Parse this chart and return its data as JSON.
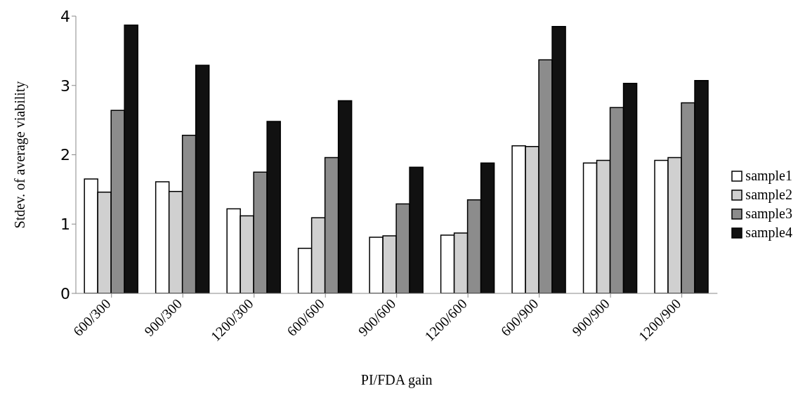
{
  "chart_data": {
    "type": "bar",
    "xlabel": "PI/FDA gain",
    "ylabel": "Stdev. of average  viability",
    "categories": [
      "600/300",
      "900/300",
      "1200/300",
      "600/600",
      "900/600",
      "1200/600",
      "600/900",
      "900/900",
      "1200/900"
    ],
    "series": [
      {
        "name": "sample1",
        "color": "#ffffff",
        "values": [
          1.65,
          1.61,
          1.22,
          0.65,
          0.81,
          0.84,
          2.13,
          1.88,
          1.92
        ]
      },
      {
        "name": "sample2",
        "color": "#d0d0d0",
        "values": [
          1.46,
          1.47,
          1.12,
          1.09,
          0.83,
          0.87,
          2.12,
          1.92,
          1.96
        ]
      },
      {
        "name": "sample3",
        "color": "#8c8c8c",
        "values": [
          2.64,
          2.28,
          1.75,
          1.96,
          1.29,
          1.35,
          3.37,
          2.68,
          2.75
        ]
      },
      {
        "name": "sample4",
        "color": "#111111",
        "values": [
          3.87,
          3.29,
          2.48,
          2.78,
          1.82,
          1.88,
          3.85,
          3.03,
          3.07
        ]
      }
    ],
    "ylim": [
      0,
      4
    ],
    "yticks": [
      0,
      1,
      2,
      3,
      4
    ],
    "grid": false,
    "legend": "right"
  }
}
